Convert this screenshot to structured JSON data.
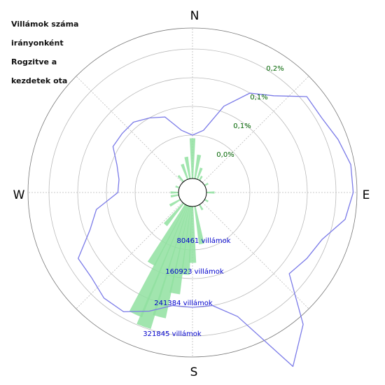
{
  "chart_data": {
    "type": "polar",
    "title_lines": [
      "Villámok száma",
      "irányonként",
      "Rogzitve a",
      "kezdetek ota"
    ],
    "compass_labels": {
      "N": "N",
      "E": "E",
      "S": "S",
      "W": "W"
    },
    "percent_ring_labels": [
      "0,0%",
      "0,1%",
      "0,1%",
      "0,2%"
    ],
    "percent_ring_values": [
      0.0,
      0.05,
      0.1,
      0.15
    ],
    "count_ring_labels": [
      "80461 villámok",
      "160923 villámok",
      "241384 villámok",
      "321845 villámok"
    ],
    "count_ring_values": [
      80461,
      160923,
      241384,
      321845
    ],
    "colors": {
      "counts": "#90e0a0",
      "percent": "#7b7be8",
      "percent_labels": "#006400",
      "count_labels": "#0000cc",
      "grid": "#bbbbbb"
    },
    "series": [
      {
        "kind": "percent_line",
        "unit": "percent",
        "angles_deg": [
          0,
          10,
          20,
          30,
          40,
          50,
          60,
          70,
          80,
          90,
          100,
          110,
          120,
          130,
          140,
          150,
          160,
          170,
          180,
          190,
          200,
          210,
          220,
          230,
          240,
          250,
          260,
          270,
          280,
          290,
          300,
          310,
          320,
          330,
          340,
          350
        ],
        "values": [
          0.0,
          0.01,
          0.06,
          0.1,
          0.12,
          0.16,
          0.16,
          0.17,
          0.18,
          0.18,
          0.17,
          0.14,
          0.13,
          0.12,
          0.2,
          0.25,
          0.13,
          0.1,
          0.1,
          0.1,
          0.12,
          0.14,
          0.14,
          0.13,
          0.13,
          0.09,
          0.07,
          0.03,
          0.03,
          0.04,
          0.06,
          0.06,
          0.06,
          0.05,
          0.04,
          0.01
        ]
      },
      {
        "kind": "count_bars",
        "unit": "villámok",
        "angles_deg": [
          0,
          10,
          20,
          30,
          60,
          90,
          120,
          150,
          170,
          180,
          185,
          190,
          195,
          200,
          205,
          210,
          220,
          240,
          260,
          270,
          290,
          320,
          340,
          350
        ],
        "values": [
          100000,
          60000,
          30000,
          12000,
          10000,
          20000,
          10000,
          15000,
          95000,
          140000,
          170000,
          220000,
          285000,
          320000,
          300000,
          170000,
          70000,
          30000,
          20000,
          20000,
          10000,
          20000,
          40000,
          55000
        ]
      }
    ]
  }
}
